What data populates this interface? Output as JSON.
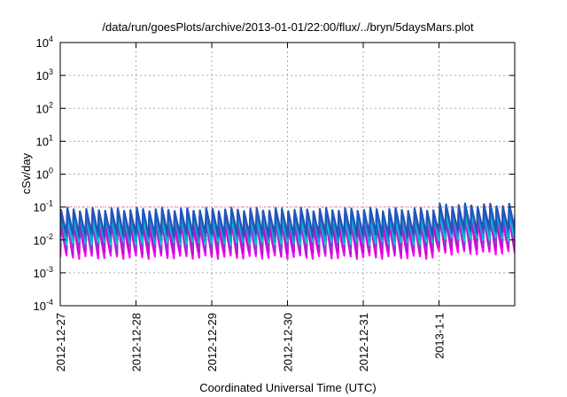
{
  "chart_data": {
    "type": "line",
    "title": "/data/run/goesPlots/archive/2013-01-01/22:00/flux/../bryn/5daysMars.plot",
    "xlabel": "Coordinated Universal Time (UTC)",
    "ylabel": "cSv/day",
    "x_ticks": [
      "2012-12-27",
      "2012-12-28",
      "2012-12-29",
      "2012-12-30",
      "2012-12-31",
      "2013-1-1"
    ],
    "xlim": [
      "2012-12-27T00:00",
      "2013-01-02T00:00"
    ],
    "y_scale": "log",
    "ylim": [
      0.0001,
      10000
    ],
    "y_ticks": [
      {
        "base": "10",
        "exp": "-4"
      },
      {
        "base": "10",
        "exp": "-3"
      },
      {
        "base": "10",
        "exp": "-2"
      },
      {
        "base": "10",
        "exp": "-1"
      },
      {
        "base": "10",
        "exp": "0"
      },
      {
        "base": "10",
        "exp": "1"
      },
      {
        "base": "10",
        "exp": "2"
      },
      {
        "base": "10",
        "exp": "3"
      },
      {
        "base": "10",
        "exp": "4"
      }
    ],
    "grid": true,
    "reference_line": {
      "value": 0.1,
      "color": "#ff6666"
    },
    "orbit_period_hours": 2,
    "series": [
      {
        "color": "#ff00ff",
        "peak": 0.03,
        "trough": 0.003
      },
      {
        "color": "#cc00cc",
        "peak": 0.035,
        "trough": 0.004
      },
      {
        "color": "#9933cc",
        "peak": 0.045,
        "trough": 0.005
      },
      {
        "color": "#00cccc",
        "peak": 0.055,
        "trough": 0.008
      },
      {
        "color": "#00aacc",
        "peak": 0.065,
        "trough": 0.01
      },
      {
        "color": "#3366cc",
        "peak": 0.075,
        "trough": 0.013
      },
      {
        "color": "#2255bb",
        "peak": 0.085,
        "trough": 0.015
      }
    ]
  }
}
